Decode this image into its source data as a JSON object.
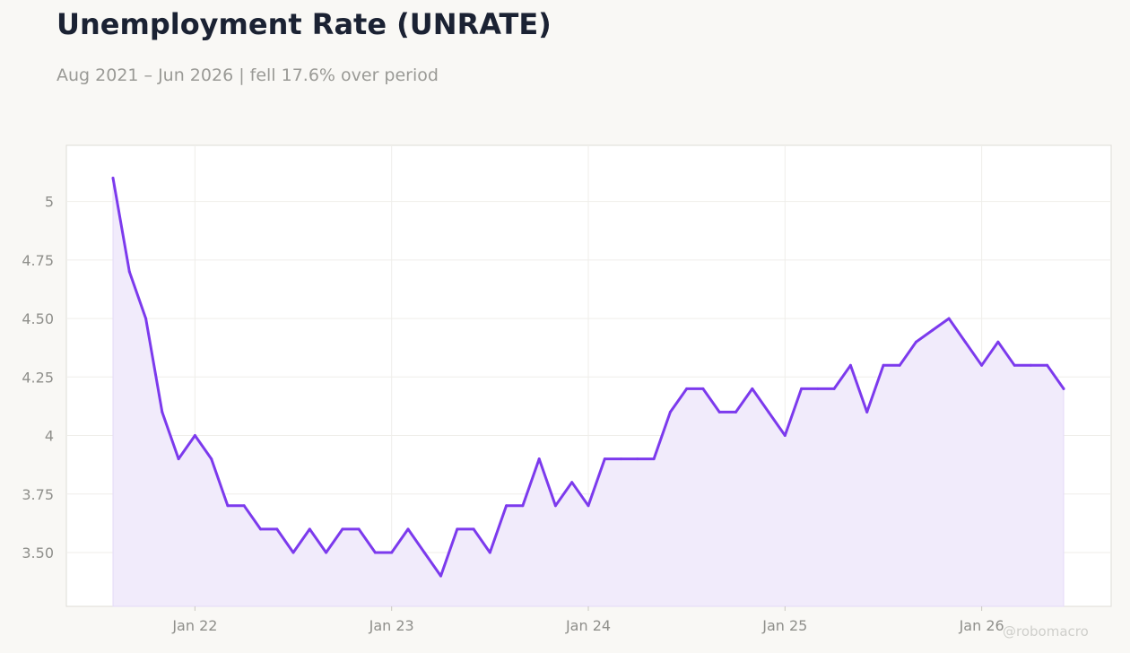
{
  "header": {
    "title": "Unemployment Rate (UNRATE)",
    "subtitle": "Aug 2021 – Jun 2026 | fell 17.6% over period"
  },
  "watermark": "@robomacro",
  "chart_data": {
    "type": "area",
    "title": "Unemployment Rate (UNRATE)",
    "subtitle": "Aug 2021 – Jun 2026 | fell 17.6% over period",
    "xlabel": "",
    "ylabel": "",
    "start": "2021-08",
    "end": "2026-06",
    "x": [
      "2021-08",
      "2021-09",
      "2021-10",
      "2021-11",
      "2021-12",
      "2022-01",
      "2022-02",
      "2022-03",
      "2022-04",
      "2022-05",
      "2022-06",
      "2022-07",
      "2022-08",
      "2022-09",
      "2022-10",
      "2022-11",
      "2022-12",
      "2023-01",
      "2023-02",
      "2023-03",
      "2023-04",
      "2023-05",
      "2023-06",
      "2023-07",
      "2023-08",
      "2023-09",
      "2023-10",
      "2023-11",
      "2023-12",
      "2024-01",
      "2024-02",
      "2024-03",
      "2024-04",
      "2024-05",
      "2024-06",
      "2024-07",
      "2024-08",
      "2024-09",
      "2024-10",
      "2024-11",
      "2024-12",
      "2025-01",
      "2025-02",
      "2025-03",
      "2025-04",
      "2025-05",
      "2025-06",
      "2025-07",
      "2025-08",
      "2025-09",
      "2025-10",
      "2025-11",
      "2025-12",
      "2026-01",
      "2026-02",
      "2026-03",
      "2026-04",
      "2026-05",
      "2026-06"
    ],
    "series": [
      {
        "values": [
          5.1,
          4.7,
          4.5,
          4.1,
          3.9,
          4.0,
          3.9,
          3.7,
          3.7,
          3.6,
          3.6,
          3.5,
          3.6,
          3.5,
          3.6,
          3.6,
          3.5,
          3.5,
          3.6,
          3.5,
          3.4,
          3.6,
          3.6,
          3.5,
          3.7,
          3.7,
          3.9,
          3.7,
          3.8,
          3.7,
          3.9,
          3.9,
          3.9,
          3.9,
          4.1,
          4.2,
          4.2,
          4.1,
          4.1,
          4.2,
          4.1,
          4.0,
          4.2,
          4.2,
          4.2,
          4.3,
          4.1,
          4.3,
          4.3,
          4.4,
          4.45,
          4.5,
          4.4,
          4.3,
          4.4,
          4.3,
          4.3,
          4.3,
          4.2
        ]
      }
    ],
    "ylim": [
      3.27,
      5.24
    ],
    "y_ticks": [
      3.5,
      3.75,
      4,
      4.25,
      4.5,
      4.75,
      5
    ],
    "y_tick_labels": [
      "3.50",
      "3.75",
      "4",
      "4.25",
      "4.50",
      "4.75",
      "5"
    ],
    "x_ticks": [
      "2022-01",
      "2023-01",
      "2024-01",
      "2025-01",
      "2026-01"
    ],
    "x_tick_labels": [
      "Jan 22",
      "Jan 23",
      "Jan 24",
      "Jan 25",
      "Jan 26"
    ],
    "grid": true,
    "line_color": "#7c3aed",
    "fill_color": "#f1ebfb",
    "plot_background": "#ffffff",
    "page_background": "#f9f8f5"
  }
}
